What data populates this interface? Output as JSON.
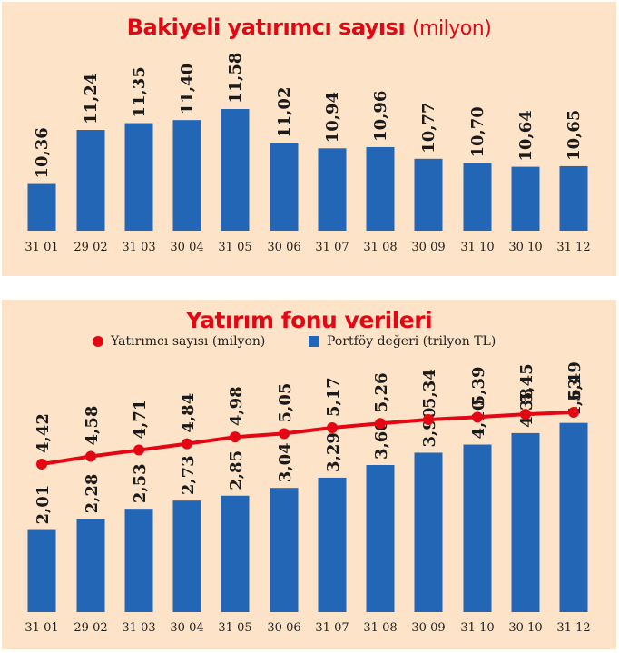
{
  "colors": {
    "bar": "#2366b5",
    "line": "#e30613",
    "background": "#fde3c8",
    "title": "#e30613"
  },
  "chart_data": [
    {
      "type": "bar",
      "title": "Bakiyeli yatırımcı sayısı",
      "subtitle": "(milyon)",
      "categories": [
        "31 01",
        "29 02",
        "31 03",
        "30 04",
        "31 05",
        "30 06",
        "31 07",
        "31 08",
        "30 09",
        "31 10",
        "30 10",
        "31 12"
      ],
      "values": [
        10.36,
        11.24,
        11.35,
        11.4,
        11.58,
        11.02,
        10.94,
        10.96,
        10.77,
        10.7,
        10.64,
        10.65
      ],
      "value_labels": [
        "10,36",
        "11,24",
        "11,35",
        "11,40",
        "11,58",
        "11,02",
        "10,94",
        "10,96",
        "10,77",
        "10,70",
        "10,64",
        "10,65"
      ]
    },
    {
      "type": "bar",
      "title": "Yatırım fonu verileri",
      "categories": [
        "31 01",
        "29 02",
        "31 03",
        "30 04",
        "31 05",
        "30 06",
        "31 07",
        "31 08",
        "30 09",
        "31 10",
        "30 10",
        "31 12"
      ],
      "legend": [
        "Yatırımcı sayısı (milyon)",
        "Portföy değeri (trilyon TL)"
      ],
      "series": [
        {
          "name": "Yatırımcı sayısı (milyon)",
          "type": "line",
          "values": [
            4.42,
            4.58,
            4.71,
            4.84,
            4.98,
            5.05,
            5.17,
            5.26,
            5.34,
            5.39,
            5.45,
            5.49
          ],
          "value_labels": [
            "4,42",
            "4,58",
            "4,71",
            "4,84",
            "4,98",
            "5,05",
            "5,17",
            "5,26",
            "5,34",
            "5,39",
            "5,45",
            "5,49"
          ]
        },
        {
          "name": "Portföy değeri (trilyon TL)",
          "type": "bar",
          "values": [
            2.01,
            2.28,
            2.53,
            2.73,
            2.85,
            3.04,
            3.29,
            3.6,
            3.9,
            4.1,
            4.38,
            4.63
          ],
          "value_labels": [
            "2,01",
            "2,28",
            "2,53",
            "2,73",
            "2,85",
            "3,04",
            "3,29",
            "3,60",
            "3,90",
            "4,10",
            "4,38",
            "4,63"
          ]
        }
      ]
    }
  ]
}
